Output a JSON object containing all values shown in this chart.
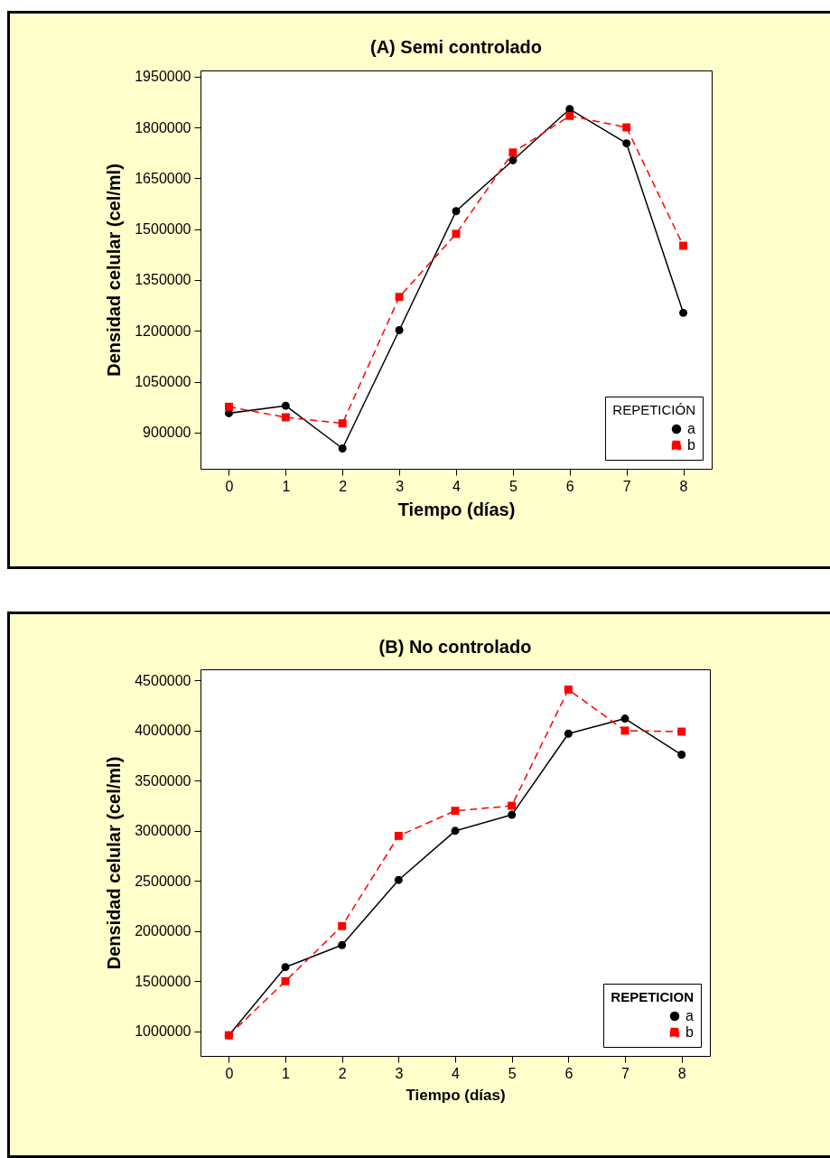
{
  "chart_data": [
    {
      "type": "line",
      "title": "(A) Semi controlado",
      "xlabel": "Tiempo (días)",
      "ylabel": "Densidad celular (cel/ml)",
      "legend_title": "REPETICIÓN",
      "legend": "bottom right",
      "x": [
        0,
        1,
        2,
        3,
        4,
        5,
        6,
        7,
        8
      ],
      "xlim": [
        -0.5,
        8.5
      ],
      "xticks": [
        0,
        1,
        2,
        3,
        4,
        5,
        6,
        7,
        8
      ],
      "ylim": [
        793000,
        1968000
      ],
      "yticks": [
        900000,
        1050000,
        1200000,
        1350000,
        1500000,
        1650000,
        1800000,
        1950000
      ],
      "series": [
        {
          "name": "a",
          "color": "#000000",
          "marker": "circle",
          "line_style": "solid",
          "values": [
            957000,
            979000,
            853000,
            1202000,
            1553000,
            1703000,
            1854000,
            1753000,
            1253000
          ]
        },
        {
          "name": "b",
          "color": "#ff0000",
          "marker": "square",
          "line_style": "dashed",
          "values": [
            976000,
            945000,
            927000,
            1300000,
            1486000,
            1726000,
            1834000,
            1800000,
            1451000
          ]
        }
      ]
    },
    {
      "type": "line",
      "title": "(B) No controlado",
      "xlabel": "Tiempo (días)",
      "ylabel": "Densidad celular (cel/ml)",
      "legend_title": "REPETICION",
      "legend": "bottom right",
      "x": [
        0,
        1,
        2,
        3,
        4,
        5,
        6,
        7,
        8
      ],
      "xlim": [
        -0.5,
        8.5
      ],
      "xticks": [
        0,
        1,
        2,
        3,
        4,
        5,
        6,
        7,
        8
      ],
      "ylim": [
        754000,
        4612000
      ],
      "yticks": [
        1000000,
        1500000,
        2000000,
        2500000,
        3000000,
        3500000,
        4000000,
        4500000
      ],
      "series": [
        {
          "name": "a",
          "color": "#000000",
          "marker": "circle",
          "line_style": "solid",
          "values": [
            960000,
            1640000,
            1860000,
            2510000,
            3000000,
            3160000,
            3970000,
            4120000,
            3760000
          ]
        },
        {
          "name": "b",
          "color": "#ff0000",
          "marker": "square",
          "line_style": "dashed",
          "values": [
            960000,
            1500000,
            2050000,
            2950000,
            3200000,
            3250000,
            4410000,
            4000000,
            3990000
          ]
        }
      ]
    }
  ]
}
